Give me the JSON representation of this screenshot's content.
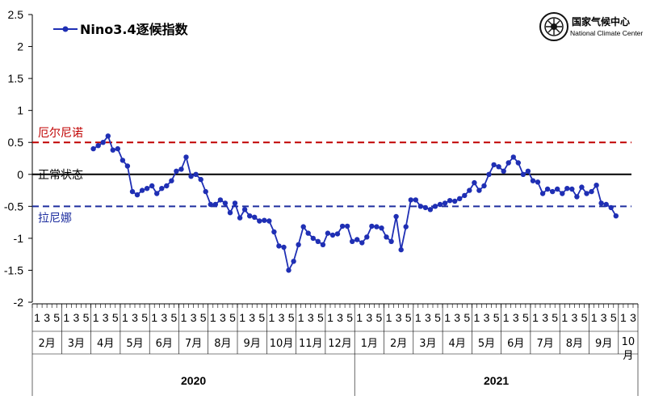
{
  "chart_data": {
    "type": "line",
    "legend": {
      "label": "Nino3.4逐候指数",
      "position": "top-left"
    },
    "ylim": [
      -2,
      2.5
    ],
    "yticks": [
      -2,
      -1.5,
      -1,
      -0.5,
      0,
      0.5,
      1,
      1.5,
      2,
      2.5
    ],
    "ytick_labels": [
      "-2",
      "-1.5",
      "-1",
      "-0.5",
      "0",
      "0.5",
      "1",
      "1.5",
      "2",
      "2.5"
    ],
    "reference_lines": [
      {
        "label": "厄尔尼诺",
        "value": 0.5,
        "style": "dashed",
        "color": "#c00000"
      },
      {
        "label": "正常状态",
        "value": 0,
        "style": "solid",
        "color": "#000000"
      },
      {
        "label": "拉尼娜",
        "value": -0.5,
        "style": "dashed",
        "color": "#1f2f9f"
      }
    ],
    "pentad_labels": [
      "1",
      "3",
      "5"
    ],
    "months": [
      {
        "label": "2月"
      },
      {
        "label": "3月"
      },
      {
        "label": "4月"
      },
      {
        "label": "5月"
      },
      {
        "label": "6月"
      },
      {
        "label": "7月"
      },
      {
        "label": "8月"
      },
      {
        "label": "9月"
      },
      {
        "label": "10月"
      },
      {
        "label": "11月"
      },
      {
        "label": "12月"
      },
      {
        "label": "1月"
      },
      {
        "label": "2月"
      },
      {
        "label": "3月"
      },
      {
        "label": "4月"
      },
      {
        "label": "5月"
      },
      {
        "label": "6月"
      },
      {
        "label": "7月"
      },
      {
        "label": "8月"
      },
      {
        "label": "9月"
      },
      {
        "label": "10月"
      }
    ],
    "last_month_pentads": [
      "1",
      "3"
    ],
    "years": [
      {
        "label": "2020",
        "month_count": 11
      },
      {
        "label": "2021",
        "month_count": 10
      }
    ],
    "start_index": 12,
    "series": [
      {
        "name": "Nino3.4逐候指数",
        "color": "#1f2fb4",
        "values": [
          0.4,
          0.45,
          0.5,
          0.6,
          0.38,
          0.4,
          0.22,
          0.13,
          -0.27,
          -0.32,
          -0.25,
          -0.22,
          -0.18,
          -0.3,
          -0.22,
          -0.18,
          -0.1,
          0.05,
          0.08,
          0.27,
          -0.03,
          0.0,
          -0.08,
          -0.27,
          -0.47,
          -0.47,
          -0.4,
          -0.45,
          -0.6,
          -0.45,
          -0.68,
          -0.55,
          -0.65,
          -0.67,
          -0.73,
          -0.72,
          -0.73,
          -0.9,
          -1.12,
          -1.14,
          -1.5,
          -1.36,
          -1.1,
          -0.82,
          -0.92,
          -1.0,
          -1.05,
          -1.1,
          -0.92,
          -0.95,
          -0.93,
          -0.81,
          -0.81,
          -1.05,
          -1.02,
          -1.07,
          -0.98,
          -0.81,
          -0.82,
          -0.84,
          -0.98,
          -1.05,
          -0.66,
          -1.18,
          -0.82,
          -0.4,
          -0.4,
          -0.5,
          -0.52,
          -0.55,
          -0.5,
          -0.47,
          -0.45,
          -0.41,
          -0.42,
          -0.38,
          -0.33,
          -0.25,
          -0.13,
          -0.25,
          -0.18,
          0.0,
          0.15,
          0.12,
          0.05,
          0.18,
          0.27,
          0.18,
          0.0,
          0.05,
          -0.1,
          -0.12,
          -0.3,
          -0.23,
          -0.27,
          -0.23,
          -0.3,
          -0.22,
          -0.23,
          -0.35,
          -0.2,
          -0.3,
          -0.27,
          -0.17,
          -0.45,
          -0.47,
          -0.52,
          -0.65
        ]
      }
    ]
  },
  "logo": {
    "name_cn": "国家气候中心",
    "name_en": "National Climate Center"
  }
}
